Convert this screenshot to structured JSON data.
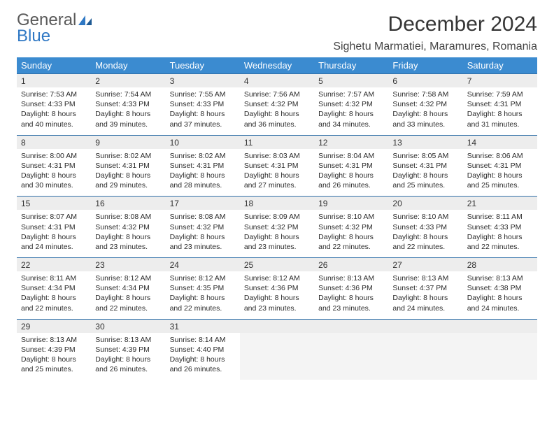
{
  "brand": {
    "part1": "General",
    "part2": "Blue"
  },
  "title": "December 2024",
  "location": "Sighetu Marmatiei, Maramures, Romania",
  "header_bg": "#3b8bd0",
  "header_fg": "#ffffff",
  "daynum_bg": "#ededed",
  "rule_color": "#2f6fa8",
  "text_color": "#2b2b2b",
  "weekdays": [
    "Sunday",
    "Monday",
    "Tuesday",
    "Wednesday",
    "Thursday",
    "Friday",
    "Saturday"
  ],
  "weeks": [
    [
      {
        "n": "1",
        "sr": "Sunrise: 7:53 AM",
        "ss": "Sunset: 4:33 PM",
        "d1": "Daylight: 8 hours",
        "d2": "and 40 minutes."
      },
      {
        "n": "2",
        "sr": "Sunrise: 7:54 AM",
        "ss": "Sunset: 4:33 PM",
        "d1": "Daylight: 8 hours",
        "d2": "and 39 minutes."
      },
      {
        "n": "3",
        "sr": "Sunrise: 7:55 AM",
        "ss": "Sunset: 4:33 PM",
        "d1": "Daylight: 8 hours",
        "d2": "and 37 minutes."
      },
      {
        "n": "4",
        "sr": "Sunrise: 7:56 AM",
        "ss": "Sunset: 4:32 PM",
        "d1": "Daylight: 8 hours",
        "d2": "and 36 minutes."
      },
      {
        "n": "5",
        "sr": "Sunrise: 7:57 AM",
        "ss": "Sunset: 4:32 PM",
        "d1": "Daylight: 8 hours",
        "d2": "and 34 minutes."
      },
      {
        "n": "6",
        "sr": "Sunrise: 7:58 AM",
        "ss": "Sunset: 4:32 PM",
        "d1": "Daylight: 8 hours",
        "d2": "and 33 minutes."
      },
      {
        "n": "7",
        "sr": "Sunrise: 7:59 AM",
        "ss": "Sunset: 4:31 PM",
        "d1": "Daylight: 8 hours",
        "d2": "and 31 minutes."
      }
    ],
    [
      {
        "n": "8",
        "sr": "Sunrise: 8:00 AM",
        "ss": "Sunset: 4:31 PM",
        "d1": "Daylight: 8 hours",
        "d2": "and 30 minutes."
      },
      {
        "n": "9",
        "sr": "Sunrise: 8:02 AM",
        "ss": "Sunset: 4:31 PM",
        "d1": "Daylight: 8 hours",
        "d2": "and 29 minutes."
      },
      {
        "n": "10",
        "sr": "Sunrise: 8:02 AM",
        "ss": "Sunset: 4:31 PM",
        "d1": "Daylight: 8 hours",
        "d2": "and 28 minutes."
      },
      {
        "n": "11",
        "sr": "Sunrise: 8:03 AM",
        "ss": "Sunset: 4:31 PM",
        "d1": "Daylight: 8 hours",
        "d2": "and 27 minutes."
      },
      {
        "n": "12",
        "sr": "Sunrise: 8:04 AM",
        "ss": "Sunset: 4:31 PM",
        "d1": "Daylight: 8 hours",
        "d2": "and 26 minutes."
      },
      {
        "n": "13",
        "sr": "Sunrise: 8:05 AM",
        "ss": "Sunset: 4:31 PM",
        "d1": "Daylight: 8 hours",
        "d2": "and 25 minutes."
      },
      {
        "n": "14",
        "sr": "Sunrise: 8:06 AM",
        "ss": "Sunset: 4:31 PM",
        "d1": "Daylight: 8 hours",
        "d2": "and 25 minutes."
      }
    ],
    [
      {
        "n": "15",
        "sr": "Sunrise: 8:07 AM",
        "ss": "Sunset: 4:31 PM",
        "d1": "Daylight: 8 hours",
        "d2": "and 24 minutes."
      },
      {
        "n": "16",
        "sr": "Sunrise: 8:08 AM",
        "ss": "Sunset: 4:32 PM",
        "d1": "Daylight: 8 hours",
        "d2": "and 23 minutes."
      },
      {
        "n": "17",
        "sr": "Sunrise: 8:08 AM",
        "ss": "Sunset: 4:32 PM",
        "d1": "Daylight: 8 hours",
        "d2": "and 23 minutes."
      },
      {
        "n": "18",
        "sr": "Sunrise: 8:09 AM",
        "ss": "Sunset: 4:32 PM",
        "d1": "Daylight: 8 hours",
        "d2": "and 23 minutes."
      },
      {
        "n": "19",
        "sr": "Sunrise: 8:10 AM",
        "ss": "Sunset: 4:32 PM",
        "d1": "Daylight: 8 hours",
        "d2": "and 22 minutes."
      },
      {
        "n": "20",
        "sr": "Sunrise: 8:10 AM",
        "ss": "Sunset: 4:33 PM",
        "d1": "Daylight: 8 hours",
        "d2": "and 22 minutes."
      },
      {
        "n": "21",
        "sr": "Sunrise: 8:11 AM",
        "ss": "Sunset: 4:33 PM",
        "d1": "Daylight: 8 hours",
        "d2": "and 22 minutes."
      }
    ],
    [
      {
        "n": "22",
        "sr": "Sunrise: 8:11 AM",
        "ss": "Sunset: 4:34 PM",
        "d1": "Daylight: 8 hours",
        "d2": "and 22 minutes."
      },
      {
        "n": "23",
        "sr": "Sunrise: 8:12 AM",
        "ss": "Sunset: 4:34 PM",
        "d1": "Daylight: 8 hours",
        "d2": "and 22 minutes."
      },
      {
        "n": "24",
        "sr": "Sunrise: 8:12 AM",
        "ss": "Sunset: 4:35 PM",
        "d1": "Daylight: 8 hours",
        "d2": "and 22 minutes."
      },
      {
        "n": "25",
        "sr": "Sunrise: 8:12 AM",
        "ss": "Sunset: 4:36 PM",
        "d1": "Daylight: 8 hours",
        "d2": "and 23 minutes."
      },
      {
        "n": "26",
        "sr": "Sunrise: 8:13 AM",
        "ss": "Sunset: 4:36 PM",
        "d1": "Daylight: 8 hours",
        "d2": "and 23 minutes."
      },
      {
        "n": "27",
        "sr": "Sunrise: 8:13 AM",
        "ss": "Sunset: 4:37 PM",
        "d1": "Daylight: 8 hours",
        "d2": "and 24 minutes."
      },
      {
        "n": "28",
        "sr": "Sunrise: 8:13 AM",
        "ss": "Sunset: 4:38 PM",
        "d1": "Daylight: 8 hours",
        "d2": "and 24 minutes."
      }
    ],
    [
      {
        "n": "29",
        "sr": "Sunrise: 8:13 AM",
        "ss": "Sunset: 4:39 PM",
        "d1": "Daylight: 8 hours",
        "d2": "and 25 minutes."
      },
      {
        "n": "30",
        "sr": "Sunrise: 8:13 AM",
        "ss": "Sunset: 4:39 PM",
        "d1": "Daylight: 8 hours",
        "d2": "and 26 minutes."
      },
      {
        "n": "31",
        "sr": "Sunrise: 8:14 AM",
        "ss": "Sunset: 4:40 PM",
        "d1": "Daylight: 8 hours",
        "d2": "and 26 minutes."
      },
      null,
      null,
      null,
      null
    ]
  ]
}
